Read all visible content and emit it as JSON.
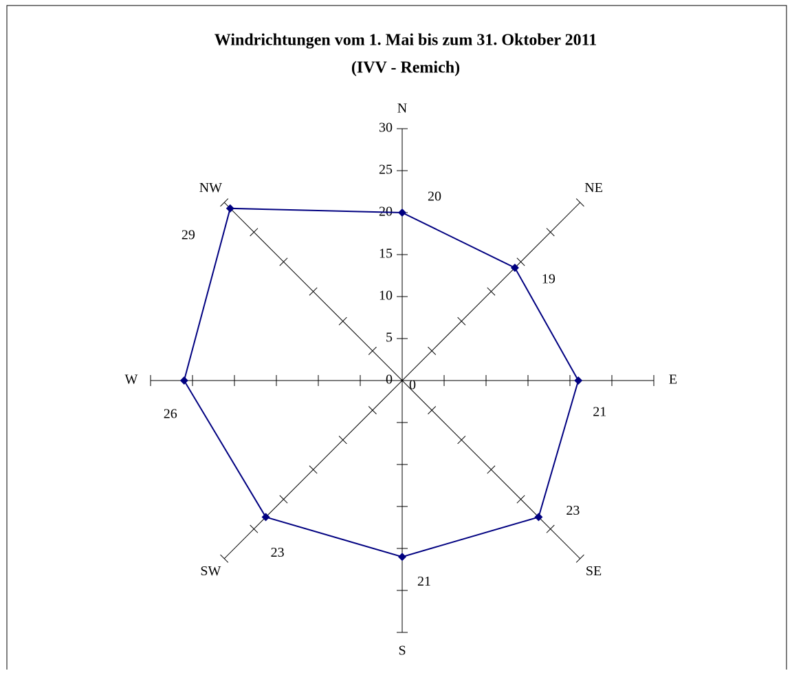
{
  "chart_data": {
    "type": "radar",
    "title": "Windrichtungen vom 1. Mai bis zum 31. Oktober  2011",
    "subtitle": "(IVV - Remich)",
    "categories": [
      "N",
      "NE",
      "E",
      "SE",
      "S",
      "SW",
      "W",
      "NW"
    ],
    "values": [
      20,
      19,
      21,
      23,
      21,
      23,
      26,
      29
    ],
    "color": "#000080",
    "ylim": [
      0,
      30
    ],
    "yticks": [
      0,
      5,
      10,
      15,
      20,
      25,
      30
    ]
  }
}
